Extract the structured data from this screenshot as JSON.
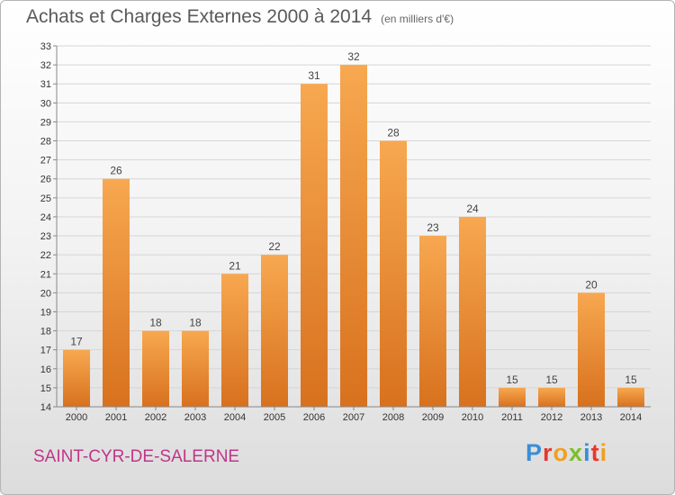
{
  "header": {
    "title": "Achats et Charges Externes 2000 à 2014",
    "subtitle": "(en milliers d'€)"
  },
  "footer": {
    "commune": "SAINT-CYR-DE-SALERNE",
    "logo": "Proxiti"
  },
  "colors": {
    "bar_light": "#f7a850",
    "bar_dark": "#d8711e",
    "grid": "#d6d6d6",
    "commune": "#c0358a",
    "logo_letters": [
      "#3a8ed6",
      "#e8372c",
      "#f0a01e",
      "#7cbf2a",
      "#3a8ed6",
      "#e8372c",
      "#f0a01e"
    ]
  },
  "chart_data": {
    "type": "bar",
    "title": "Achats et Charges Externes 2000 à 2014",
    "subtitle": "(en milliers d'€)",
    "categories": [
      "2000",
      "2001",
      "2002",
      "2003",
      "2004",
      "2005",
      "2006",
      "2007",
      "2008",
      "2009",
      "2010",
      "2011",
      "2012",
      "2013",
      "2014"
    ],
    "values": [
      17,
      26,
      18,
      18,
      21,
      22,
      31,
      32,
      28,
      23,
      24,
      15,
      15,
      20,
      15
    ],
    "ylim": [
      14,
      33
    ],
    "yticks": [
      14,
      15,
      16,
      17,
      18,
      19,
      20,
      21,
      22,
      23,
      24,
      25,
      26,
      27,
      28,
      29,
      30,
      31,
      32,
      33
    ],
    "grid": true,
    "data_labels": true
  }
}
